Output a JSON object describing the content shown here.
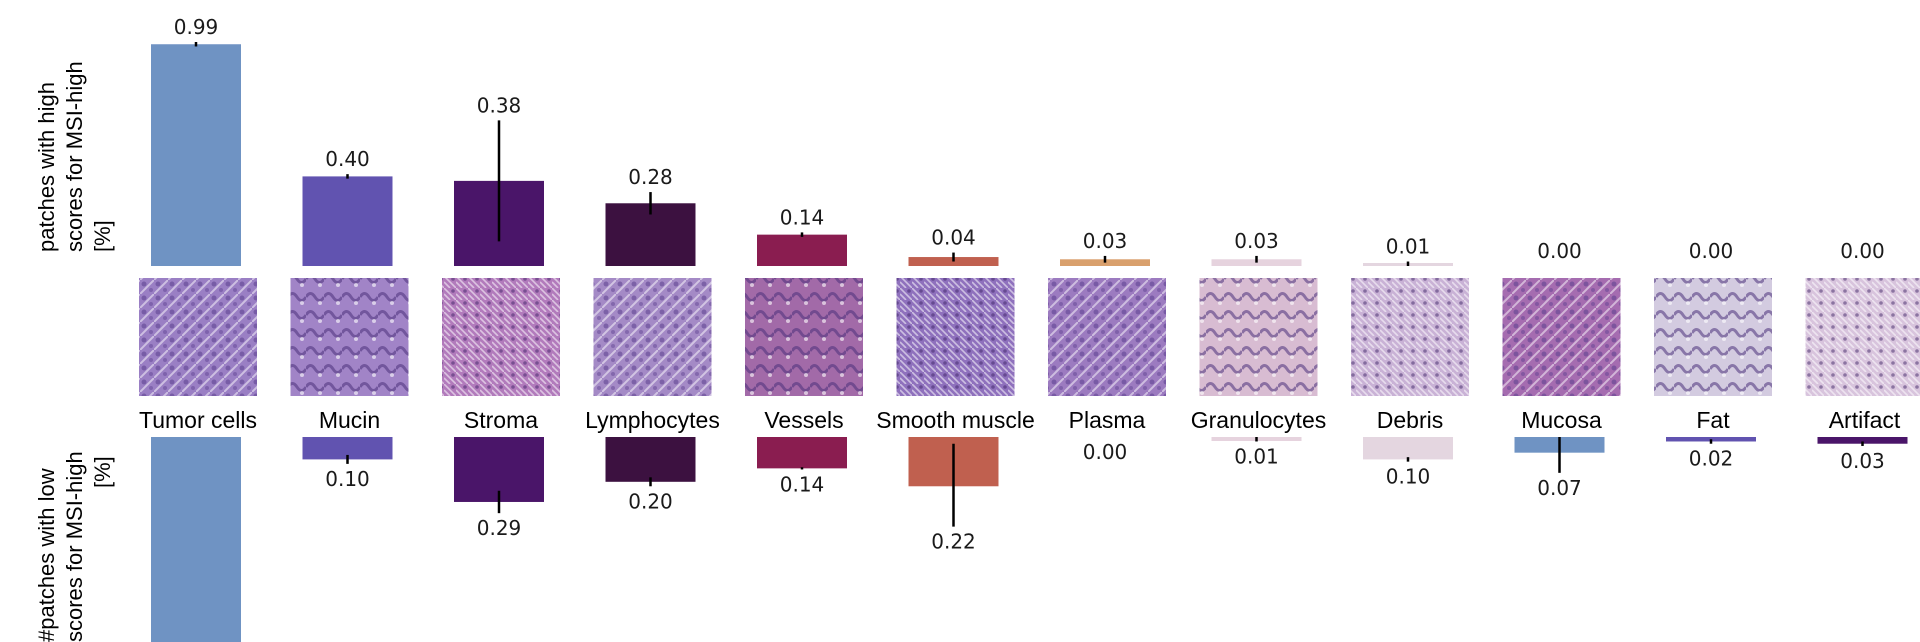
{
  "chart_data": {
    "type": "bar",
    "categories": [
      "Tumor cells",
      "Mucin",
      "Stroma",
      "Lymphocytes",
      "Vessels",
      "Smooth muscle",
      "Plasma",
      "Granulocytes",
      "Debris",
      "Mucosa",
      "Fat",
      "Artifact"
    ],
    "series": [
      {
        "values": [
          0.99,
          0.4,
          0.38,
          0.28,
          0.14,
          0.04,
          0.03,
          0.03,
          0.01,
          0.0,
          0.0,
          0.0
        ],
        "labels": [
          "0.99",
          "0.40",
          "0.38",
          "0.28",
          "0.14",
          "0.04",
          "0.03",
          "0.03",
          "0.01",
          "0.00",
          "0.00",
          "0.00"
        ],
        "error_low": [
          0.98,
          0.39,
          0.11,
          0.23,
          0.13,
          0.02,
          0.015,
          0.015,
          0.0,
          0.0,
          0.0,
          0.0
        ],
        "error_high": [
          1.0,
          0.41,
          0.65,
          0.33,
          0.15,
          0.06,
          0.045,
          0.045,
          0.02,
          0.0,
          0.0,
          0.0
        ]
      },
      {
        "values": [
          1.0,
          0.1,
          0.29,
          0.2,
          0.14,
          0.22,
          0.0,
          0.01,
          0.1,
          0.07,
          0.02,
          0.03
        ],
        "labels": [
          "",
          "0.10",
          "0.29",
          "0.20",
          "0.14",
          "0.22",
          "0.00",
          "0.01",
          "0.10",
          "0.07",
          "0.02",
          "0.03"
        ],
        "error_low": [
          0.99,
          0.08,
          0.24,
          0.18,
          0.135,
          0.03,
          0.0,
          0.0,
          0.09,
          0.0,
          0.01,
          0.02
        ],
        "error_high": [
          1.0,
          0.12,
          0.34,
          0.22,
          0.145,
          0.4,
          0.0,
          0.02,
          0.11,
          0.16,
          0.03,
          0.04
        ]
      }
    ],
    "ylabel_top": [
      "patches with high",
      "scores for MSI-high",
      "[%]"
    ],
    "ylabel_bottom": [
      "#patches with low",
      "scores for MSI-high",
      "[%]"
    ],
    "ylim_top": [
      0,
      1.0
    ],
    "ylim_bottom": [
      0,
      1.0
    ],
    "colors": [
      "#6f93c3",
      "#6153b0",
      "#4a1569",
      "#3c1140",
      "#8a1d50",
      "#c0604f",
      "#d9a06d",
      "#e6d3de",
      "#e4d6e0",
      "#6f93c3",
      "#6153b0",
      "#4a1569"
    ],
    "thumbnails": [
      "tumor-cells-tissue",
      "mucin-tissue",
      "stroma-tissue",
      "lymphocytes-tissue",
      "vessels-tissue",
      "smooth-muscle-tissue",
      "plasma-tissue",
      "granulocytes-tissue",
      "debris-tissue",
      "mucosa-tissue",
      "fat-tissue",
      "artifact-tissue"
    ]
  }
}
